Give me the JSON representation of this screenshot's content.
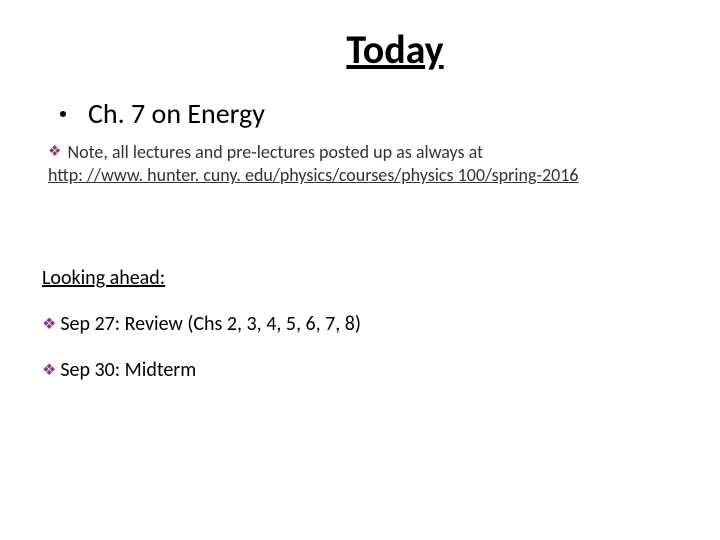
{
  "slide": {
    "title": "Today",
    "main_bullet": "Ch. 7 on Energy",
    "note_prefix": "Note, all lectures and pre-lectures posted up as always  at",
    "link_text": "http: //www. hunter. cuny. edu/physics/courses/physics 100/spring-2016",
    "looking_ahead_label": "Looking ahead:",
    "ahead_items": [
      "Sep 27: Review (Chs 2, 3, 4, 5, 6, 7, 8)",
      "Sep 30: Midterm"
    ]
  },
  "colors": {
    "diamond": "#8b3a8b",
    "text": "#000000",
    "muted": "#333333",
    "background": "#ffffff"
  },
  "typography": {
    "title_fontsize": 40,
    "main_bullet_fontsize": 28,
    "sub_fontsize": 18,
    "ahead_fontsize": 20
  }
}
